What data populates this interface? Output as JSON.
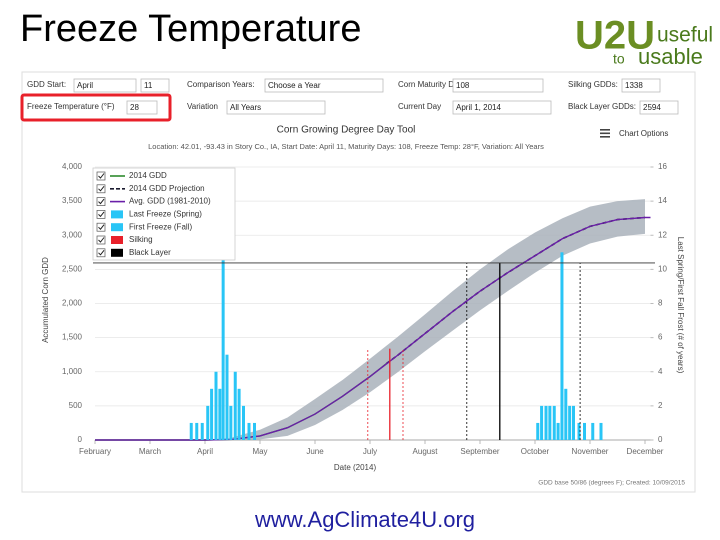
{
  "slide": {
    "title": "Freeze Temperature",
    "url": "www.AgClimate4U.org"
  },
  "logo": {
    "mark": "U2U",
    "word1": "useful",
    "word2": "to",
    "word3": "usable"
  },
  "controls": {
    "gdd_start": {
      "label": "GDD Start:",
      "month": "April",
      "day": "11"
    },
    "comparison_years": {
      "label": "Comparison Years:",
      "value": "Choose a Year"
    },
    "maturity_days": {
      "label": "Corn Maturity Days:",
      "value": "108"
    },
    "silking_gdds": {
      "label": "Silking GDDs:",
      "value": "1338"
    },
    "freeze_temp": {
      "label": "Freeze Temperature (°F)",
      "value": "28"
    },
    "variation": {
      "label": "Variation",
      "value": "All Years"
    },
    "current_day": {
      "label": "Current Day",
      "value": "April 1, 2014"
    },
    "black_layer_gdds": {
      "label": "Black Layer GDDs:",
      "value": "2594"
    },
    "chart_options": "Chart Options"
  },
  "chart_data": {
    "type": "line",
    "title": "Corn Growing Degree Day Tool",
    "subtitle": "Location: 42.01, -93.43 in Story Co., IA, Start Date: April 11, Maturity Days: 108, Freeze Temp: 28°F, Variation: All Years",
    "xlabel": "Date (2014)",
    "ylabel": "Accumulated Corn GDD",
    "y2label": "Last Spring/First Fall Frost (# of years)",
    "credit": "GDD base 50/86 (degrees F); Created: 10/09/2015",
    "xlim": [
      0,
      10.1
    ],
    "xticks": [
      {
        "value": 0,
        "label": "February"
      },
      {
        "value": 1,
        "label": "March"
      },
      {
        "value": 2,
        "label": "April"
      },
      {
        "value": 3,
        "label": "May"
      },
      {
        "value": 4,
        "label": "June"
      },
      {
        "value": 5,
        "label": "July"
      },
      {
        "value": 6,
        "label": "August"
      },
      {
        "value": 7,
        "label": "September"
      },
      {
        "value": 8,
        "label": "October"
      },
      {
        "value": 9,
        "label": "November"
      },
      {
        "value": 10,
        "label": "December"
      }
    ],
    "ylim": [
      0,
      4000
    ],
    "yticks": [
      0,
      500,
      {
        "value": 1000,
        "label": "1,000"
      },
      {
        "value": 1500,
        "label": "1,500"
      },
      {
        "value": 2000,
        "label": "2,000"
      },
      {
        "value": 2500,
        "label": "2,500"
      },
      {
        "value": 3000,
        "label": "3,000"
      },
      {
        "value": 3500,
        "label": "3,500"
      },
      {
        "value": 4000,
        "label": "4,000"
      }
    ],
    "y2lim": [
      0,
      16
    ],
    "y2ticks": [
      0,
      2,
      4,
      6,
      8,
      10,
      12,
      14,
      16
    ],
    "band": {
      "color": "#a9b1bb",
      "x": [
        2.5,
        3,
        3.5,
        4,
        4.5,
        5,
        5.5,
        6,
        6.5,
        7,
        7.5,
        8,
        8.5,
        9,
        9.5,
        10
      ],
      "lower": [
        0,
        10,
        60,
        220,
        440,
        700,
        990,
        1300,
        1600,
        1900,
        2180,
        2450,
        2700,
        2880,
        2980,
        3020
      ],
      "upper": [
        40,
        150,
        330,
        600,
        880,
        1190,
        1510,
        1840,
        2180,
        2500,
        2790,
        3040,
        3250,
        3420,
        3500,
        3530
      ]
    },
    "series": [
      {
        "name": "2014 GDD",
        "color": "#2e8b2e",
        "dashed": false,
        "x": [
          0,
          1,
          2,
          2.5,
          3,
          3.5,
          4,
          4.5,
          5,
          5.3
        ],
        "values": [
          0,
          0,
          0,
          10,
          60,
          180,
          380,
          640,
          930,
          1120
        ]
      },
      {
        "name": "2014 GDD Projection",
        "color": "#1a1a2e",
        "dashed": true,
        "x": [
          5.3,
          5.5,
          6,
          6.5,
          7,
          7.5,
          8,
          8.5,
          9,
          9.5,
          10
        ],
        "values": [
          1120,
          1240,
          1560,
          1880,
          2180,
          2450,
          2700,
          2950,
          3130,
          3230,
          3260
        ]
      },
      {
        "name": "Avg. GDD (1981-2010)",
        "color": "#6a1fa8",
        "dashed": false,
        "x": [
          0,
          1,
          2,
          2.5,
          3,
          3.5,
          4,
          4.5,
          5,
          5.5,
          6,
          6.5,
          7,
          7.5,
          8,
          8.5,
          9,
          9.5,
          10,
          10.1
        ],
        "values": [
          0,
          0,
          0,
          10,
          60,
          180,
          380,
          640,
          930,
          1240,
          1560,
          1880,
          2180,
          2450,
          2700,
          2950,
          3130,
          3230,
          3260,
          3260
        ]
      },
      {
        "name": "Last Freeze (Spring)",
        "color": "#29c5f6",
        "axis": "y2",
        "bars": true,
        "x": [
          1.75,
          1.85,
          1.95,
          2.05,
          2.12,
          2.2,
          2.27,
          2.33,
          2.4,
          2.47,
          2.55,
          2.62,
          2.7,
          2.8,
          2.9
        ],
        "values": [
          1,
          1,
          1,
          2,
          3,
          4,
          3,
          11,
          5,
          2,
          4,
          3,
          2,
          1,
          1
        ]
      },
      {
        "name": "First Freeze (Fall)",
        "color": "#29c5f6",
        "axis": "y2",
        "bars": true,
        "x": [
          8.05,
          8.12,
          8.2,
          8.27,
          8.35,
          8.42,
          8.49,
          8.56,
          8.63,
          8.7,
          8.8,
          8.9,
          9.05,
          9.2
        ],
        "values": [
          1,
          2,
          2,
          2,
          2,
          1,
          11,
          3,
          2,
          2,
          1,
          1,
          1,
          1
        ]
      },
      {
        "name": "Silking",
        "color": "#e8202a",
        "marker": {
          "x": 5.36,
          "early": 4.96,
          "late": 5.6,
          "gdd": 1338
        }
      },
      {
        "name": "Black Layer",
        "color": "#000000",
        "marker": {
          "x": 7.36,
          "early": 6.76,
          "late": 8.82,
          "gdd": 2594
        }
      }
    ]
  }
}
